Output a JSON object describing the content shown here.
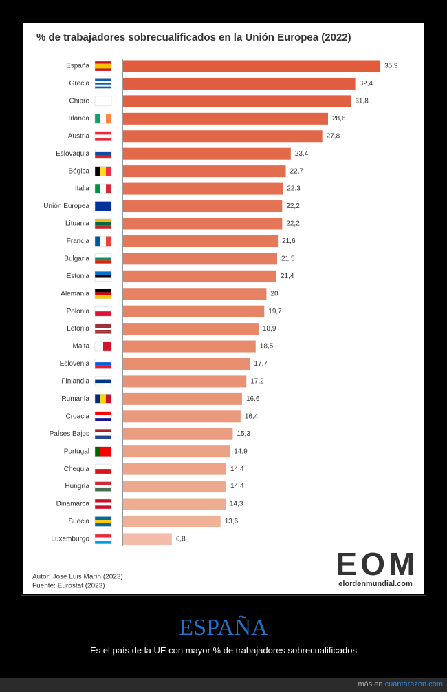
{
  "chart_data": {
    "type": "bar",
    "orientation": "horizontal",
    "title": "% de trabajadores sobrecualificados en la Unión Europea (2022)",
    "categories": [
      "España",
      "Grecia",
      "Chipre",
      "Irlanda",
      "Austria",
      "Eslovaquia",
      "Bégica",
      "Italia",
      "Unión Europea",
      "Lituania",
      "Francia",
      "Bulgaria",
      "Estonia",
      "Alemania",
      "Polonia",
      "Letonia",
      "Malta",
      "Eslovenia",
      "Finlandia",
      "Rumanía",
      "Croacia",
      "Países Bajos",
      "Portugal",
      "Chequia",
      "Hungría",
      "Dinamarca",
      "Suecia",
      "Luxemburgo"
    ],
    "values": [
      35.9,
      32.4,
      31.8,
      28.6,
      27.8,
      23.4,
      22.7,
      22.3,
      22.2,
      22.2,
      21.6,
      21.5,
      21.4,
      20,
      19.7,
      18.9,
      18.5,
      17.7,
      17.2,
      16.6,
      16.4,
      15.3,
      14.9,
      14.4,
      14.4,
      14.3,
      13.6,
      6.8
    ],
    "value_labels": [
      "35,9",
      "32,4",
      "31,8",
      "28,6",
      "27,8",
      "23,4",
      "22,7",
      "22,3",
      "22,2",
      "22,2",
      "21,6",
      "21,5",
      "21,4",
      "20",
      "19,7",
      "18,9",
      "18,5",
      "17,7",
      "17,2",
      "16,6",
      "16,4",
      "15,3",
      "14,9",
      "14,4",
      "14,4",
      "14,3",
      "13,6",
      "6,8"
    ],
    "colors": [
      "#e05c3c",
      "#e05e3f",
      "#e06142",
      "#e16445",
      "#e16748",
      "#e26a4b",
      "#e26d4e",
      "#e37051",
      "#e37354",
      "#e47657",
      "#e4795a",
      "#e57c5d",
      "#e57f60",
      "#e68263",
      "#e68566",
      "#e78869",
      "#e78b6c",
      "#e88e70",
      "#e89174",
      "#e99578",
      "#e9997c",
      "#ea9d80",
      "#eba184",
      "#eca588",
      "#eda98c",
      "#eead91",
      "#efb296",
      "#f2bca9"
    ]
  },
  "footer": {
    "author": "Autor: José Luis Marín (2023)",
    "source": "Fuente: Eurostat (2023)",
    "logo": "EOM",
    "logo_url": "elordenmundial.com"
  },
  "caption": {
    "title": "ESPAÑA",
    "text": "Es el país de la UE con mayor % de trabajadores sobrecualificados"
  },
  "site": {
    "prefix": "más en",
    "link": "cuantarazon.com"
  }
}
